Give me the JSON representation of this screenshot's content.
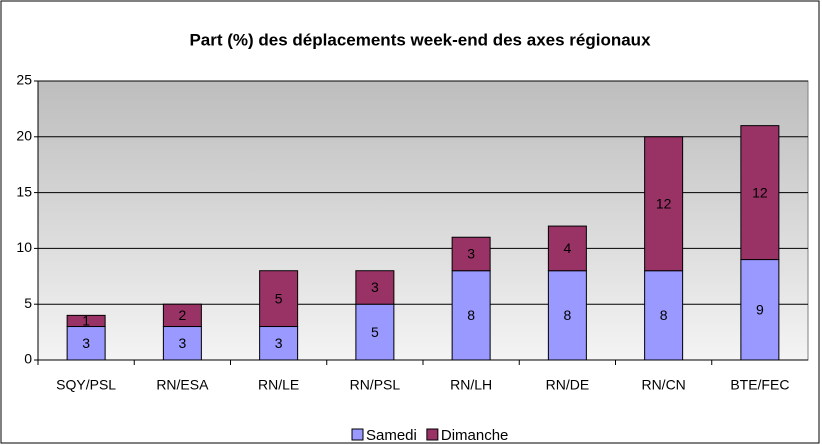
{
  "chart_data": {
    "type": "stacked-bar",
    "title": "Part (%) des déplacements week-end des axes régionaux",
    "categories": [
      "SQY/PSL",
      "RN/ESA",
      "RN/LE",
      "RN/PSL",
      "RN/LH",
      "RN/DE",
      "RN/CN",
      "BTE/FEC"
    ],
    "series": [
      {
        "name": "Samedi",
        "color": "#9999ff",
        "values": [
          3,
          3,
          3,
          5,
          8,
          8,
          8,
          9
        ]
      },
      {
        "name": "Dimanche",
        "color": "#993366",
        "values": [
          1,
          2,
          5,
          3,
          3,
          4,
          12,
          12
        ]
      }
    ],
    "ylim": [
      0,
      25
    ],
    "yticks": [
      0,
      5,
      10,
      15,
      20,
      25
    ],
    "grid": true,
    "legend": "bottom"
  }
}
